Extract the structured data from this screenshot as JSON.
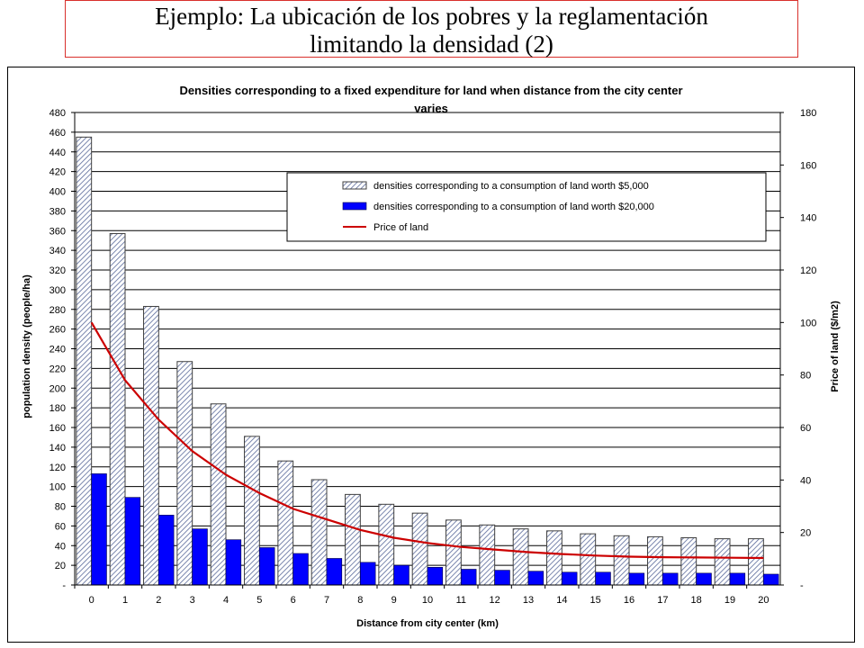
{
  "slide": {
    "title_line1": "Ejemplo: La ubicación de los pobres y la reglamentación",
    "title_line2": "limitando la densidad (2)"
  },
  "chart_data": {
    "type": "bar",
    "title": "Densities corresponding to a fixed expenditure for land when distance from the city center varies",
    "title_line1": "Densities corresponding to a fixed expenditure for land when distance from the city center",
    "title_line2": "varies",
    "xlabel": "Distance from city center (km)",
    "ylabel": "population density (people/ha)",
    "y2label": "Price of land ($/m2)",
    "categories": [
      "0",
      "1",
      "2",
      "3",
      "4",
      "5",
      "6",
      "7",
      "8",
      "9",
      "10",
      "11",
      "12",
      "13",
      "14",
      "15",
      "16",
      "17",
      "18",
      "19",
      "20"
    ],
    "ylim": [
      0,
      480
    ],
    "y_ticks": [
      "-",
      "20",
      "40",
      "60",
      "80",
      "100",
      "120",
      "140",
      "160",
      "180",
      "200",
      "220",
      "240",
      "260",
      "280",
      "300",
      "320",
      "340",
      "360",
      "380",
      "400",
      "420",
      "440",
      "460",
      "480"
    ],
    "y2lim": [
      0,
      180
    ],
    "y2_ticks": [
      "-",
      "20",
      "40",
      "60",
      "80",
      "100",
      "120",
      "140",
      "160",
      "180"
    ],
    "grid": true,
    "legend_position": "top-right",
    "series": [
      {
        "name": "densities corresponding to a consumption of land worth $5,000",
        "kind": "bar",
        "pattern": "hatched",
        "axis": "left",
        "values": [
          455,
          357,
          283,
          227,
          184,
          151,
          126,
          107,
          92,
          82,
          73,
          66,
          61,
          57,
          55,
          52,
          50,
          49,
          48,
          47,
          47
        ]
      },
      {
        "name": "densities corresponding to a consumption of land worth $20,000",
        "kind": "bar",
        "color": "#0000ff",
        "axis": "left",
        "values": [
          113,
          89,
          71,
          57,
          46,
          38,
          32,
          27,
          23,
          20,
          18,
          16,
          15,
          14,
          13,
          13,
          12,
          12,
          12,
          12,
          11
        ]
      },
      {
        "name": "Price of land",
        "kind": "line",
        "color": "#cc0000",
        "axis": "right",
        "values": [
          100,
          78,
          63,
          51,
          42,
          35,
          29,
          25,
          21,
          18,
          16,
          14.5,
          13.5,
          12.5,
          11.8,
          11.2,
          10.8,
          10.6,
          10.5,
          10.4,
          10.3
        ]
      }
    ]
  }
}
